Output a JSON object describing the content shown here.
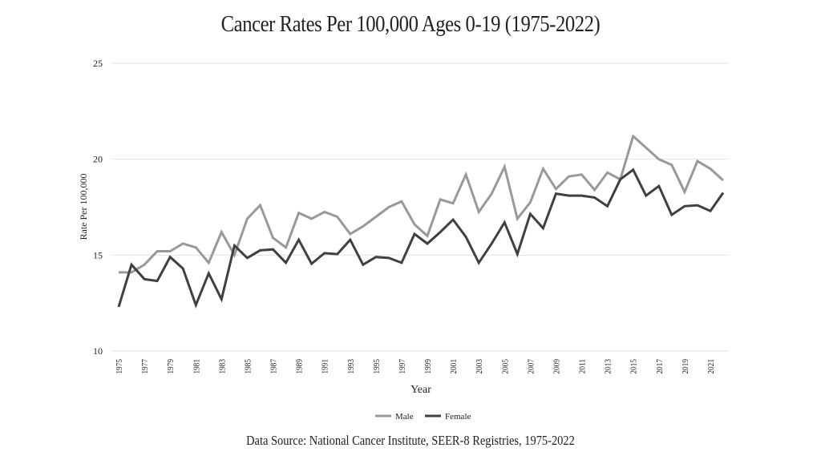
{
  "chart_data": {
    "type": "line",
    "title": "Cancer Rates Per 100,000 Ages 0-19 (1975-2022)",
    "xlabel": "Year",
    "ylabel": "Rate Per 100,000",
    "ylim": [
      10,
      25
    ],
    "yticks": [
      10,
      15,
      20,
      25
    ],
    "xticks": [
      1975,
      1977,
      1979,
      1981,
      1983,
      1985,
      1987,
      1989,
      1991,
      1993,
      1995,
      1997,
      1999,
      2001,
      2003,
      2005,
      2007,
      2009,
      2011,
      2013,
      2015,
      2017,
      2019,
      2021
    ],
    "grid": true,
    "legend_position": "bottom",
    "x": [
      1975,
      1976,
      1977,
      1978,
      1979,
      1980,
      1981,
      1982,
      1983,
      1984,
      1985,
      1986,
      1987,
      1988,
      1989,
      1990,
      1991,
      1992,
      1993,
      1994,
      1995,
      1996,
      1997,
      1998,
      1999,
      2000,
      2001,
      2002,
      2003,
      2004,
      2005,
      2006,
      2007,
      2008,
      2009,
      2010,
      2011,
      2012,
      2013,
      2014,
      2015,
      2016,
      2017,
      2018,
      2019,
      2020,
      2021,
      2022
    ],
    "series": [
      {
        "name": "Male",
        "color": "#999999",
        "values": [
          14.1,
          14.1,
          14.5,
          15.2,
          15.2,
          15.6,
          15.4,
          14.6,
          16.2,
          15.0,
          16.9,
          17.6,
          15.9,
          15.4,
          17.2,
          16.9,
          17.25,
          17.0,
          16.1,
          16.5,
          17.0,
          17.5,
          17.8,
          16.6,
          16.0,
          17.9,
          17.7,
          19.2,
          17.25,
          18.2,
          19.6,
          16.9,
          17.75,
          19.5,
          18.45,
          19.1,
          19.2,
          18.4,
          19.3,
          18.95,
          21.2,
          20.6,
          20.0,
          19.7,
          18.3,
          19.9,
          19.5,
          18.9
        ]
      },
      {
        "name": "Female",
        "color": "#3d423f",
        "values": [
          12.3,
          14.5,
          13.75,
          13.65,
          14.9,
          14.3,
          12.4,
          14.05,
          12.7,
          15.5,
          14.85,
          15.25,
          15.3,
          14.6,
          15.8,
          14.55,
          15.1,
          15.05,
          15.8,
          14.5,
          14.9,
          14.85,
          14.6,
          16.1,
          15.6,
          16.2,
          16.85,
          15.95,
          14.6,
          15.6,
          16.7,
          15.05,
          17.15,
          16.4,
          18.2,
          18.1,
          18.1,
          18.0,
          17.55,
          18.95,
          19.45,
          18.1,
          18.6,
          17.1,
          17.55,
          17.6,
          17.3,
          18.25
        ]
      }
    ],
    "source": "Data  Source: National Cancer Institute, SEER-8 Registries, 1975-2022"
  }
}
